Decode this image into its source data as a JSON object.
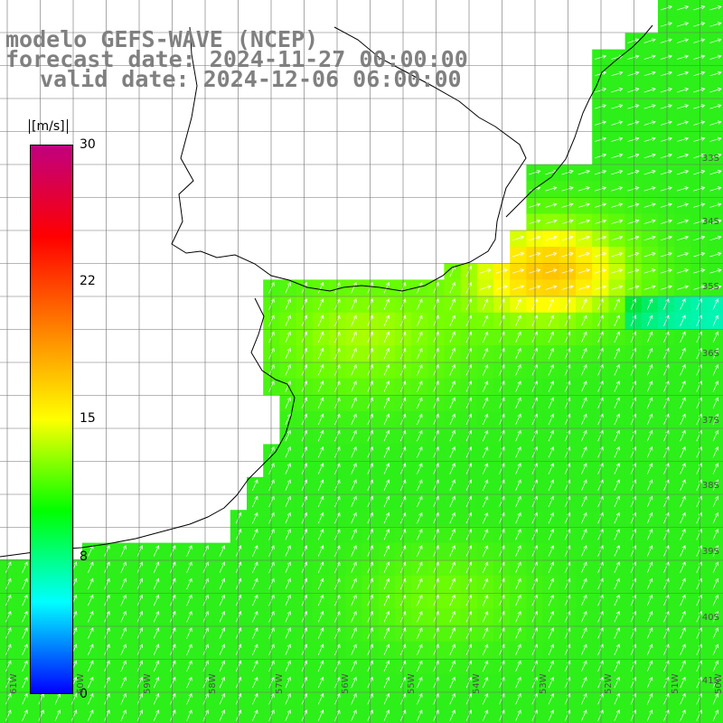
{
  "header": {
    "line1": "modelo GEFS-WAVE (NCEP)",
    "line2": "forecast date: 2024-11-27 00:00:00",
    "line3": "valid date: 2024-12-06 06:00:00"
  },
  "colorbar": {
    "units": "[m/s]",
    "ticks": [
      "30",
      "22",
      "15",
      "8",
      "0"
    ],
    "range": [
      0,
      30
    ],
    "colors": [
      "#0000ff",
      "#00ffff",
      "#00ff00",
      "#ffff00",
      "#ff8000",
      "#ff0000",
      "#c00080"
    ]
  },
  "map": {
    "field": "wind speed",
    "lat_labels": [
      "33S",
      "34S",
      "35S",
      "36S",
      "37S",
      "38S",
      "39S",
      "40S",
      "41S"
    ],
    "lon_labels": [
      "61W",
      "60W",
      "59W",
      "58W",
      "57W",
      "56W",
      "55W",
      "54W",
      "53W",
      "52W",
      "51W",
      "50W"
    ],
    "land_color": "#ffffff",
    "coast_color": "#000000",
    "grid_color": "#707070",
    "arrow_color": "#ffffff"
  }
}
